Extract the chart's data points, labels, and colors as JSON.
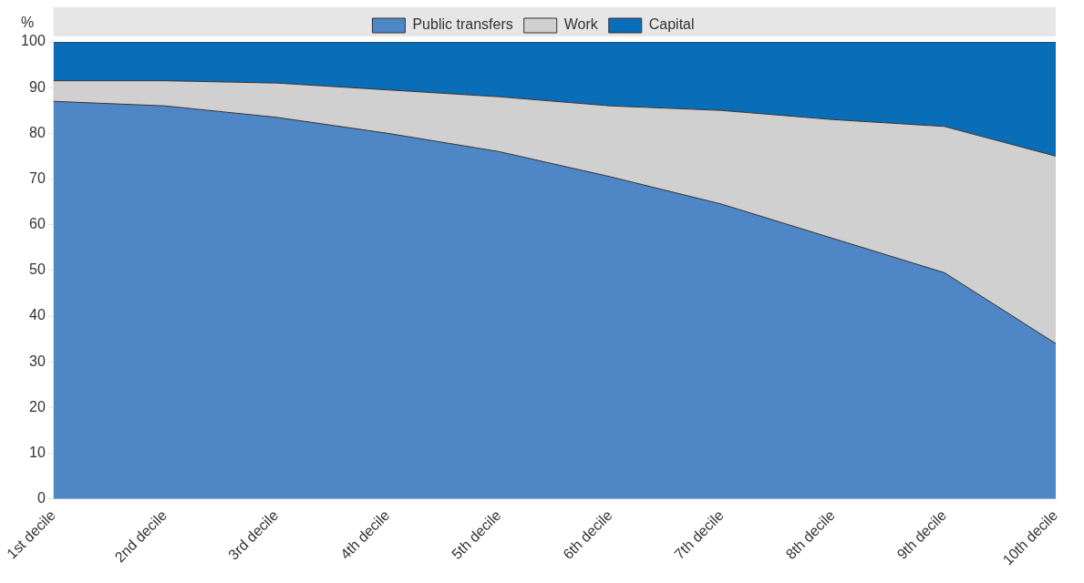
{
  "chart_data": {
    "type": "area",
    "stacked": true,
    "ylabel": "%",
    "categories": [
      "1st decile",
      "2nd decile",
      "3rd decile",
      "4th decile",
      "5th decile",
      "6th decile",
      "7th decile",
      "8th decile",
      "9th decile",
      "10th decile"
    ],
    "series": [
      {
        "name": "Public transfers",
        "color": "#4f86c6",
        "values": [
          87,
          86,
          83.5,
          80,
          76,
          70.5,
          64.5,
          57,
          49.5,
          34
        ]
      },
      {
        "name": "Work",
        "color": "#d0d0d0",
        "values": [
          4.5,
          5.5,
          7.5,
          9.5,
          12,
          15.5,
          20.5,
          26,
          32,
          41
        ]
      },
      {
        "name": "Capital",
        "color": "#0a6db8",
        "values": [
          8.5,
          8.5,
          9,
          10.5,
          12,
          14,
          15,
          17,
          18.5,
          25
        ]
      }
    ],
    "ylim": [
      0,
      100
    ],
    "yticks": [
      0,
      10,
      20,
      30,
      40,
      50,
      60,
      70,
      80,
      90,
      100
    ],
    "legend": "top",
    "grid": false
  }
}
